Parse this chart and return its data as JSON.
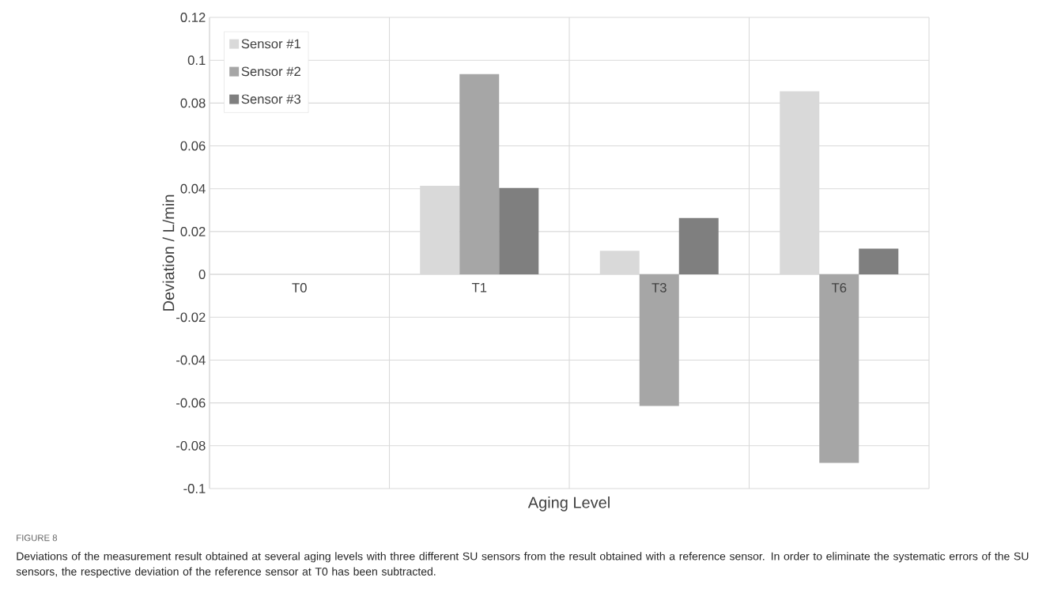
{
  "chart_data": {
    "type": "bar",
    "xlabel": "Aging Level",
    "ylabel": "Deviation / L/min",
    "categories": [
      "T0",
      "T1",
      "T3",
      "T6"
    ],
    "series": [
      {
        "name": "Sensor #1",
        "color": "#d9d9d9",
        "values": [
          0,
          0.0414,
          0.011,
          0.0855
        ]
      },
      {
        "name": "Sensor #2",
        "color": "#a6a6a6",
        "values": [
          0,
          0.0935,
          -0.0614,
          -0.088
        ]
      },
      {
        "name": "Sensor #3",
        "color": "#7f7f7f",
        "values": [
          0,
          0.0404,
          0.0263,
          0.012
        ]
      }
    ],
    "ylim": [
      -0.1,
      0.12
    ],
    "yticks": [
      -0.1,
      -0.08,
      -0.06,
      -0.04,
      -0.02,
      0,
      0.02,
      0.04,
      0.06,
      0.08,
      0.1,
      0.12
    ],
    "grid": true,
    "legend": "top left",
    "annotations": [
      "FIGURE 8",
      "Deviations of the measurement result obtained at several aging levels with three different SU sensors from the result obtained with a reference sensor. In order to eliminate the systematic errors of the SU sensors, the respective deviation of the reference sensor at T0 has been subtracted."
    ]
  }
}
